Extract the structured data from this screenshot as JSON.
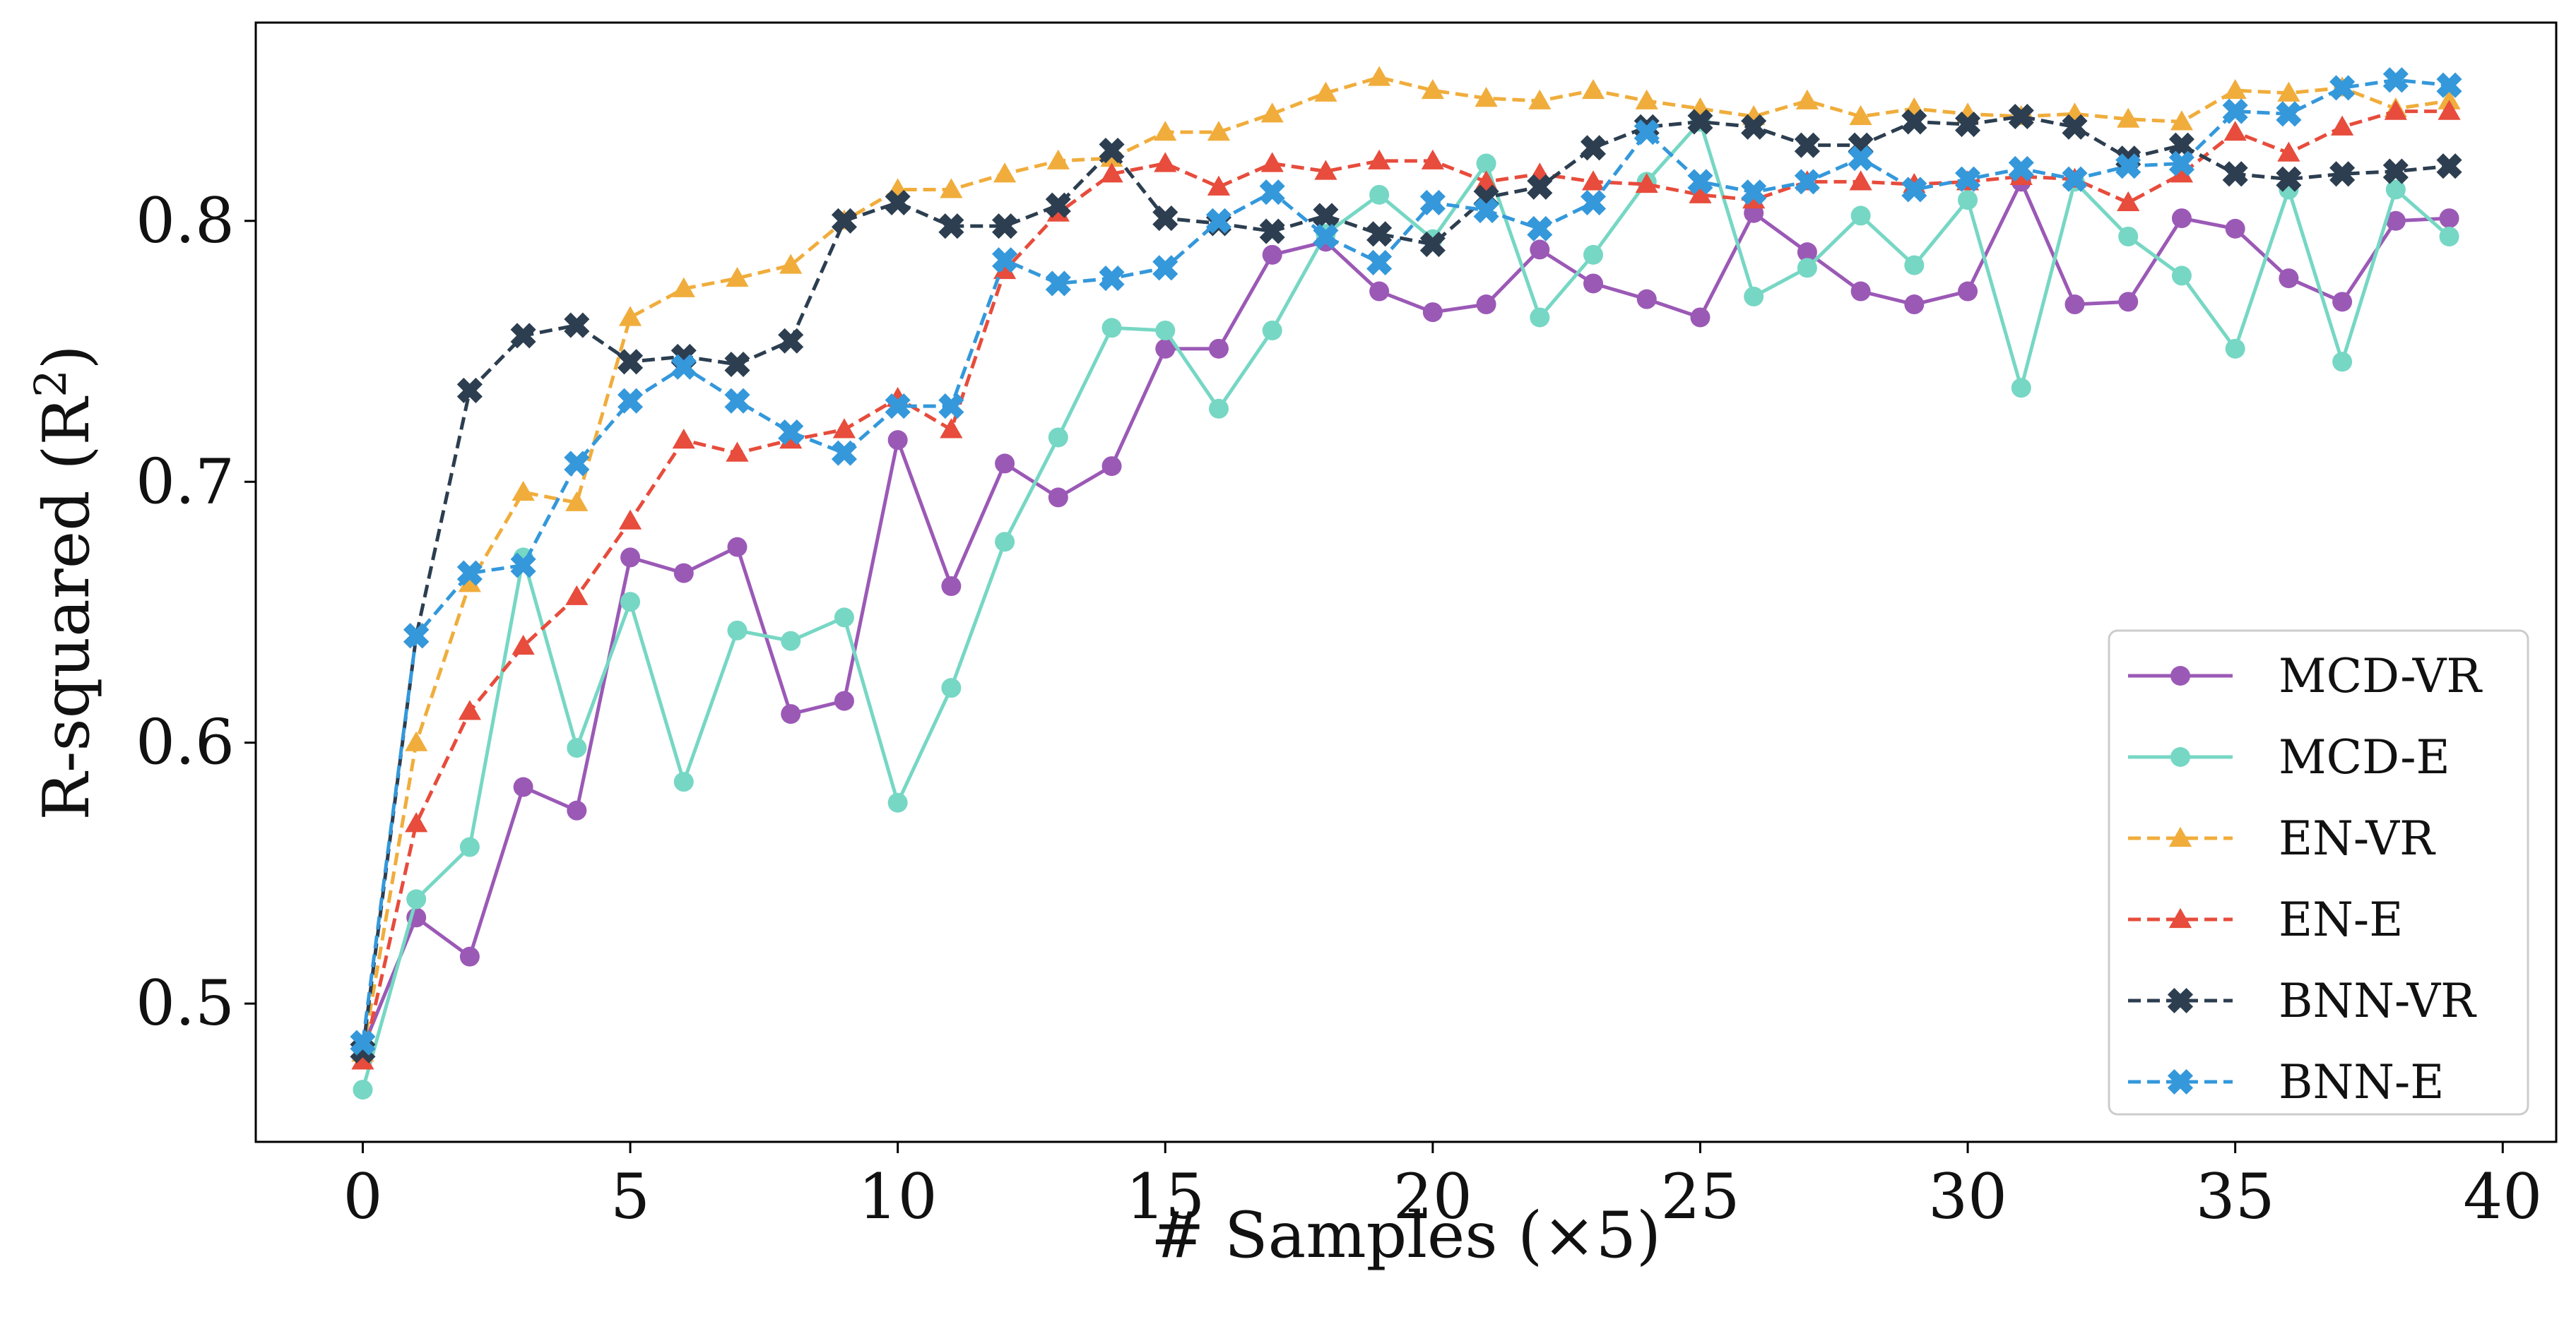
{
  "chart_data": {
    "type": "line",
    "title": "",
    "xlabel": "# Samples (×5)",
    "ylabel_main": "R-squared (R",
    "ylabel_sup": "2",
    "ylabel_close": ")",
    "xlim": [
      -2,
      41
    ],
    "ylim": [
      0.447,
      0.876
    ],
    "xticks": [
      0,
      5,
      10,
      15,
      20,
      25,
      30,
      35,
      40
    ],
    "yticks": [
      0.5,
      0.6,
      0.7,
      0.8
    ],
    "ytick_labels": [
      "0.5",
      "0.6",
      "0.7",
      "0.8"
    ],
    "legend_position": "lower-right",
    "x": [
      0,
      1,
      2,
      3,
      4,
      5,
      6,
      7,
      8,
      9,
      10,
      11,
      12,
      13,
      14,
      15,
      16,
      17,
      18,
      19,
      20,
      21,
      22,
      23,
      24,
      25,
      26,
      27,
      28,
      29,
      30,
      31,
      32,
      33,
      34,
      35,
      36,
      37,
      38,
      39
    ],
    "series": [
      {
        "name": "MCD-VR",
        "color": "#9b59b6",
        "dashed": false,
        "marker": "circle",
        "values": [
          0.483,
          0.533,
          0.518,
          0.583,
          0.574,
          0.671,
          0.665,
          0.675,
          0.611,
          0.616,
          0.716,
          0.66,
          0.707,
          0.694,
          0.706,
          0.751,
          0.751,
          0.787,
          0.792,
          0.773,
          0.765,
          0.768,
          0.789,
          0.776,
          0.77,
          0.763,
          0.803,
          0.788,
          0.773,
          0.768,
          0.773,
          0.815,
          0.768,
          0.769,
          0.801,
          0.797,
          0.778,
          0.769,
          0.8,
          0.801
        ]
      },
      {
        "name": "MCD-E",
        "color": "#76d7c4",
        "dashed": false,
        "marker": "circle",
        "values": [
          0.467,
          0.54,
          0.56,
          0.671,
          0.598,
          0.654,
          0.585,
          0.643,
          0.639,
          0.648,
          0.577,
          0.621,
          0.677,
          0.717,
          0.759,
          0.758,
          0.728,
          0.758,
          0.795,
          0.81,
          0.793,
          0.822,
          0.763,
          0.787,
          0.815,
          0.838,
          0.771,
          0.782,
          0.802,
          0.783,
          0.808,
          0.736,
          0.815,
          0.794,
          0.779,
          0.751,
          0.812,
          0.746,
          0.812,
          0.794
        ]
      },
      {
        "name": "EN-VR",
        "color": "#f0ad3c",
        "dashed": true,
        "marker": "triangle",
        "values": [
          0.481,
          0.6,
          0.661,
          0.696,
          0.692,
          0.763,
          0.774,
          0.778,
          0.783,
          0.8,
          0.812,
          0.812,
          0.818,
          0.823,
          0.824,
          0.834,
          0.834,
          0.841,
          0.849,
          0.855,
          0.85,
          0.847,
          0.846,
          0.85,
          0.846,
          0.843,
          0.84,
          0.846,
          0.84,
          0.843,
          0.841,
          0.84,
          0.841,
          0.839,
          0.838,
          0.85,
          0.849,
          0.851,
          0.843,
          0.846
        ]
      },
      {
        "name": "EN-E",
        "color": "#e74c3c",
        "dashed": true,
        "marker": "triangle",
        "values": [
          0.478,
          0.569,
          0.612,
          0.637,
          0.656,
          0.685,
          0.716,
          0.711,
          0.716,
          0.72,
          0.732,
          0.72,
          0.781,
          0.803,
          0.818,
          0.822,
          0.813,
          0.822,
          0.819,
          0.823,
          0.823,
          0.815,
          0.818,
          0.815,
          0.814,
          0.81,
          0.808,
          0.815,
          0.815,
          0.814,
          0.815,
          0.817,
          0.816,
          0.807,
          0.818,
          0.834,
          0.826,
          0.836,
          0.842,
          0.842
        ]
      },
      {
        "name": "BNN-VR",
        "color": "#2c3e50",
        "dashed": true,
        "marker": "x",
        "values": [
          0.482,
          0.641,
          0.735,
          0.756,
          0.76,
          0.746,
          0.748,
          0.745,
          0.754,
          0.8,
          0.807,
          0.798,
          0.798,
          0.806,
          0.827,
          0.801,
          0.799,
          0.796,
          0.802,
          0.795,
          0.791,
          0.809,
          0.813,
          0.828,
          0.836,
          0.838,
          0.836,
          0.829,
          0.829,
          0.838,
          0.837,
          0.84,
          0.836,
          0.824,
          0.829,
          0.818,
          0.816,
          0.818,
          0.819,
          0.821
        ]
      },
      {
        "name": "BNN-E",
        "color": "#3498db",
        "dashed": true,
        "marker": "x",
        "values": [
          0.485,
          0.641,
          0.665,
          0.668,
          0.707,
          0.731,
          0.744,
          0.731,
          0.719,
          0.711,
          0.729,
          0.729,
          0.785,
          0.776,
          0.778,
          0.782,
          0.8,
          0.811,
          0.794,
          0.784,
          0.807,
          0.804,
          0.797,
          0.807,
          0.834,
          0.815,
          0.811,
          0.815,
          0.824,
          0.812,
          0.816,
          0.82,
          0.816,
          0.821,
          0.822,
          0.842,
          0.841,
          0.851,
          0.854,
          0.852
        ]
      }
    ]
  }
}
